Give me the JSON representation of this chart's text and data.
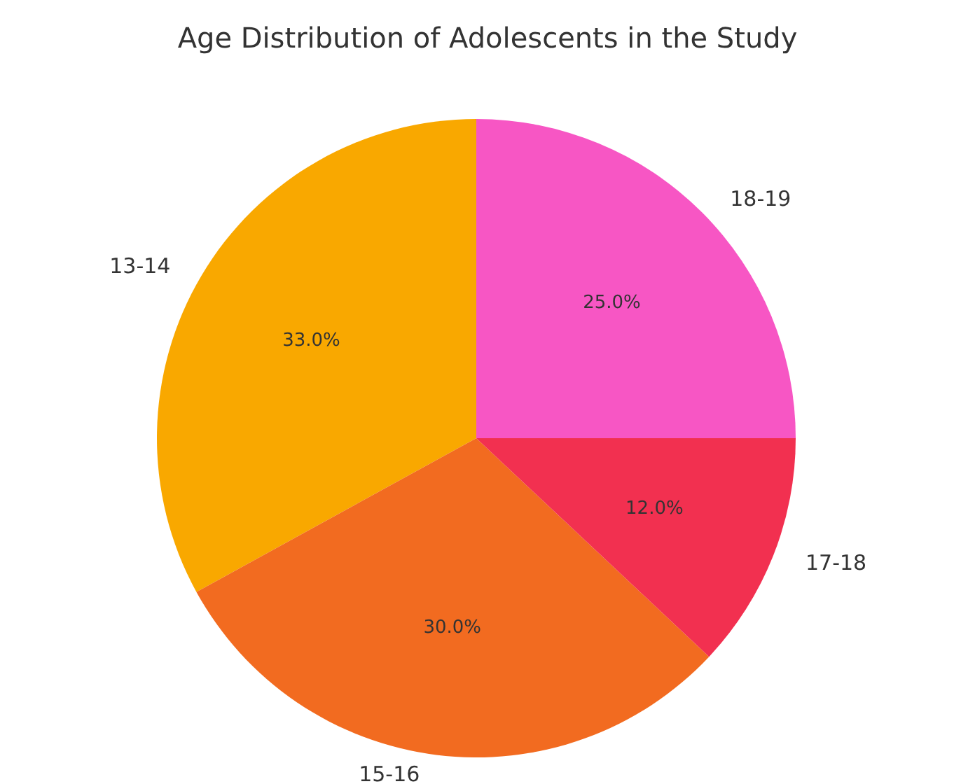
{
  "chart_data": {
    "type": "pie",
    "title": "Age Distribution of Adolescents in the Study",
    "categories": [
      "13-14",
      "15-16",
      "17-18",
      "18-19"
    ],
    "values": [
      33,
      30,
      12,
      25
    ],
    "colors": [
      "#f9a800",
      "#f26b20",
      "#f23050",
      "#f756c4"
    ],
    "value_labels": [
      "33.0%",
      "30.0%",
      "12.0%",
      "25.0%"
    ],
    "legend": false
  }
}
